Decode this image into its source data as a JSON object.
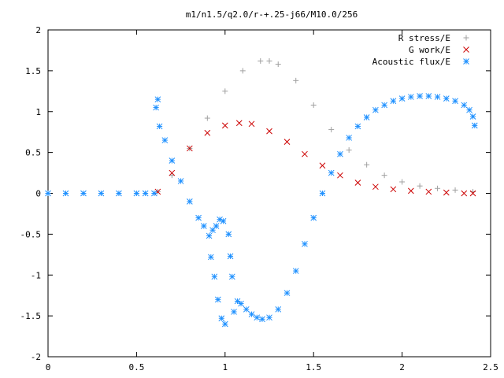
{
  "chart_data": {
    "type": "scatter",
    "title": "m1/n1.5/q2.0/r-+.25-j66/M10.0/256",
    "xlabel": "",
    "ylabel": "",
    "xlim": [
      0,
      2.5
    ],
    "ylim": [
      -2,
      2
    ],
    "x_ticks": [
      "0",
      "0.5",
      "1",
      "1.5",
      "2",
      "2.5"
    ],
    "y_ticks": [
      "2",
      "1.5",
      "1",
      "0.5",
      "0",
      "-0.5",
      "-1",
      "-1.5",
      "-2"
    ],
    "grid": false,
    "legend_position": "top-right",
    "series": [
      {
        "name": "R stress/E",
        "marker": "plus",
        "color": "#a0a0a0",
        "points": [
          [
            0.62,
            0.02
          ],
          [
            0.7,
            0.22
          ],
          [
            0.8,
            0.55
          ],
          [
            0.9,
            0.92
          ],
          [
            1.0,
            1.25
          ],
          [
            1.1,
            1.5
          ],
          [
            1.2,
            1.62
          ],
          [
            1.25,
            1.62
          ],
          [
            1.3,
            1.58
          ],
          [
            1.4,
            1.38
          ],
          [
            1.5,
            1.08
          ],
          [
            1.6,
            0.78
          ],
          [
            1.7,
            0.53
          ],
          [
            1.8,
            0.35
          ],
          [
            1.9,
            0.22
          ],
          [
            2.0,
            0.14
          ],
          [
            2.1,
            0.09
          ],
          [
            2.2,
            0.06
          ],
          [
            2.3,
            0.04
          ],
          [
            2.4,
            0.02
          ]
        ]
      },
      {
        "name": "G work/E",
        "marker": "cross",
        "color": "#cc0000",
        "points": [
          [
            0.62,
            0.02
          ],
          [
            0.7,
            0.25
          ],
          [
            0.8,
            0.55
          ],
          [
            0.9,
            0.74
          ],
          [
            1.0,
            0.83
          ],
          [
            1.08,
            0.86
          ],
          [
            1.15,
            0.85
          ],
          [
            1.25,
            0.76
          ],
          [
            1.35,
            0.63
          ],
          [
            1.45,
            0.48
          ],
          [
            1.55,
            0.34
          ],
          [
            1.65,
            0.22
          ],
          [
            1.75,
            0.13
          ],
          [
            1.85,
            0.08
          ],
          [
            1.95,
            0.05
          ],
          [
            2.05,
            0.03
          ],
          [
            2.15,
            0.02
          ],
          [
            2.25,
            0.01
          ],
          [
            2.35,
            0.0
          ],
          [
            2.4,
            0.0
          ]
        ]
      },
      {
        "name": "Acoustic flux/E",
        "marker": "star",
        "color": "#1e90ff",
        "points": [
          [
            0.0,
            0.0
          ],
          [
            0.1,
            0.0
          ],
          [
            0.2,
            0.0
          ],
          [
            0.3,
            0.0
          ],
          [
            0.4,
            0.0
          ],
          [
            0.5,
            0.0
          ],
          [
            0.55,
            0.0
          ],
          [
            0.6,
            0.0
          ],
          [
            0.61,
            1.05
          ],
          [
            0.62,
            1.15
          ],
          [
            0.63,
            0.82
          ],
          [
            0.66,
            0.65
          ],
          [
            0.7,
            0.4
          ],
          [
            0.75,
            0.15
          ],
          [
            0.8,
            -0.1
          ],
          [
            0.85,
            -0.3
          ],
          [
            0.88,
            -0.4
          ],
          [
            0.91,
            -0.52
          ],
          [
            0.93,
            -0.45
          ],
          [
            0.95,
            -0.4
          ],
          [
            0.97,
            -0.32
          ],
          [
            0.99,
            -0.34
          ],
          [
            0.92,
            -0.78
          ],
          [
            0.94,
            -1.02
          ],
          [
            0.96,
            -1.3
          ],
          [
            0.98,
            -1.53
          ],
          [
            1.0,
            -1.6
          ],
          [
            1.02,
            -0.5
          ],
          [
            1.03,
            -0.77
          ],
          [
            1.04,
            -1.02
          ],
          [
            1.05,
            -1.45
          ],
          [
            1.07,
            -1.32
          ],
          [
            1.09,
            -1.35
          ],
          [
            1.12,
            -1.42
          ],
          [
            1.15,
            -1.48
          ],
          [
            1.18,
            -1.52
          ],
          [
            1.21,
            -1.54
          ],
          [
            1.25,
            -1.52
          ],
          [
            1.3,
            -1.42
          ],
          [
            1.35,
            -1.22
          ],
          [
            1.4,
            -0.95
          ],
          [
            1.45,
            -0.62
          ],
          [
            1.5,
            -0.3
          ],
          [
            1.55,
            0.0
          ],
          [
            1.6,
            0.25
          ],
          [
            1.65,
            0.48
          ],
          [
            1.7,
            0.68
          ],
          [
            1.75,
            0.82
          ],
          [
            1.8,
            0.93
          ],
          [
            1.85,
            1.02
          ],
          [
            1.9,
            1.08
          ],
          [
            1.95,
            1.13
          ],
          [
            2.0,
            1.16
          ],
          [
            2.05,
            1.18
          ],
          [
            2.1,
            1.19
          ],
          [
            2.15,
            1.19
          ],
          [
            2.2,
            1.18
          ],
          [
            2.25,
            1.16
          ],
          [
            2.3,
            1.13
          ],
          [
            2.35,
            1.08
          ],
          [
            2.38,
            1.02
          ],
          [
            2.4,
            0.94
          ],
          [
            2.41,
            0.83
          ]
        ]
      }
    ]
  }
}
